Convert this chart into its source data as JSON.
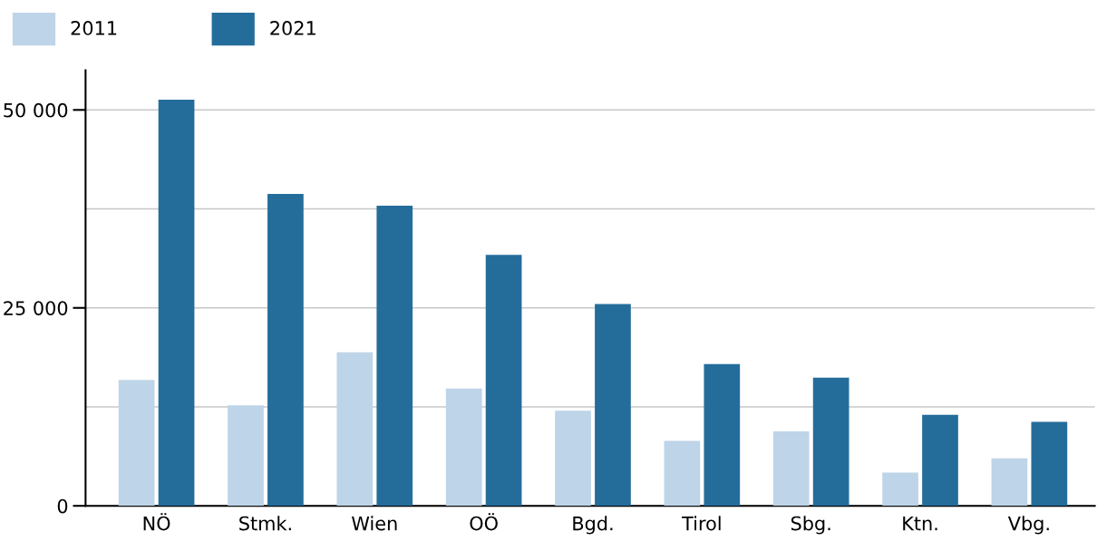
{
  "chart_data": {
    "type": "bar",
    "categories": [
      "NÖ",
      "Stmk.",
      "Wien",
      "OÖ",
      "Bgd.",
      "Tirol",
      "Sbg.",
      "Ktn.",
      "Vbg."
    ],
    "series": [
      {
        "name": "2011",
        "color": "#bed4e8",
        "values": [
          15900,
          12700,
          19400,
          14800,
          12000,
          8200,
          9400,
          4200,
          6000
        ]
      },
      {
        "name": "2021",
        "color": "#246d9b",
        "values": [
          51300,
          39400,
          37900,
          31700,
          25500,
          17900,
          16200,
          11500,
          10600
        ]
      }
    ],
    "ylim": [
      0,
      55000
    ],
    "yticks": [
      {
        "value": 0,
        "label": "0"
      },
      {
        "value": 12500,
        "label": null
      },
      {
        "value": 25000,
        "label": "25 000"
      },
      {
        "value": 37500,
        "label": null
      },
      {
        "value": 50000,
        "label": "50 000"
      }
    ],
    "grid": "y",
    "legend": "top left"
  }
}
